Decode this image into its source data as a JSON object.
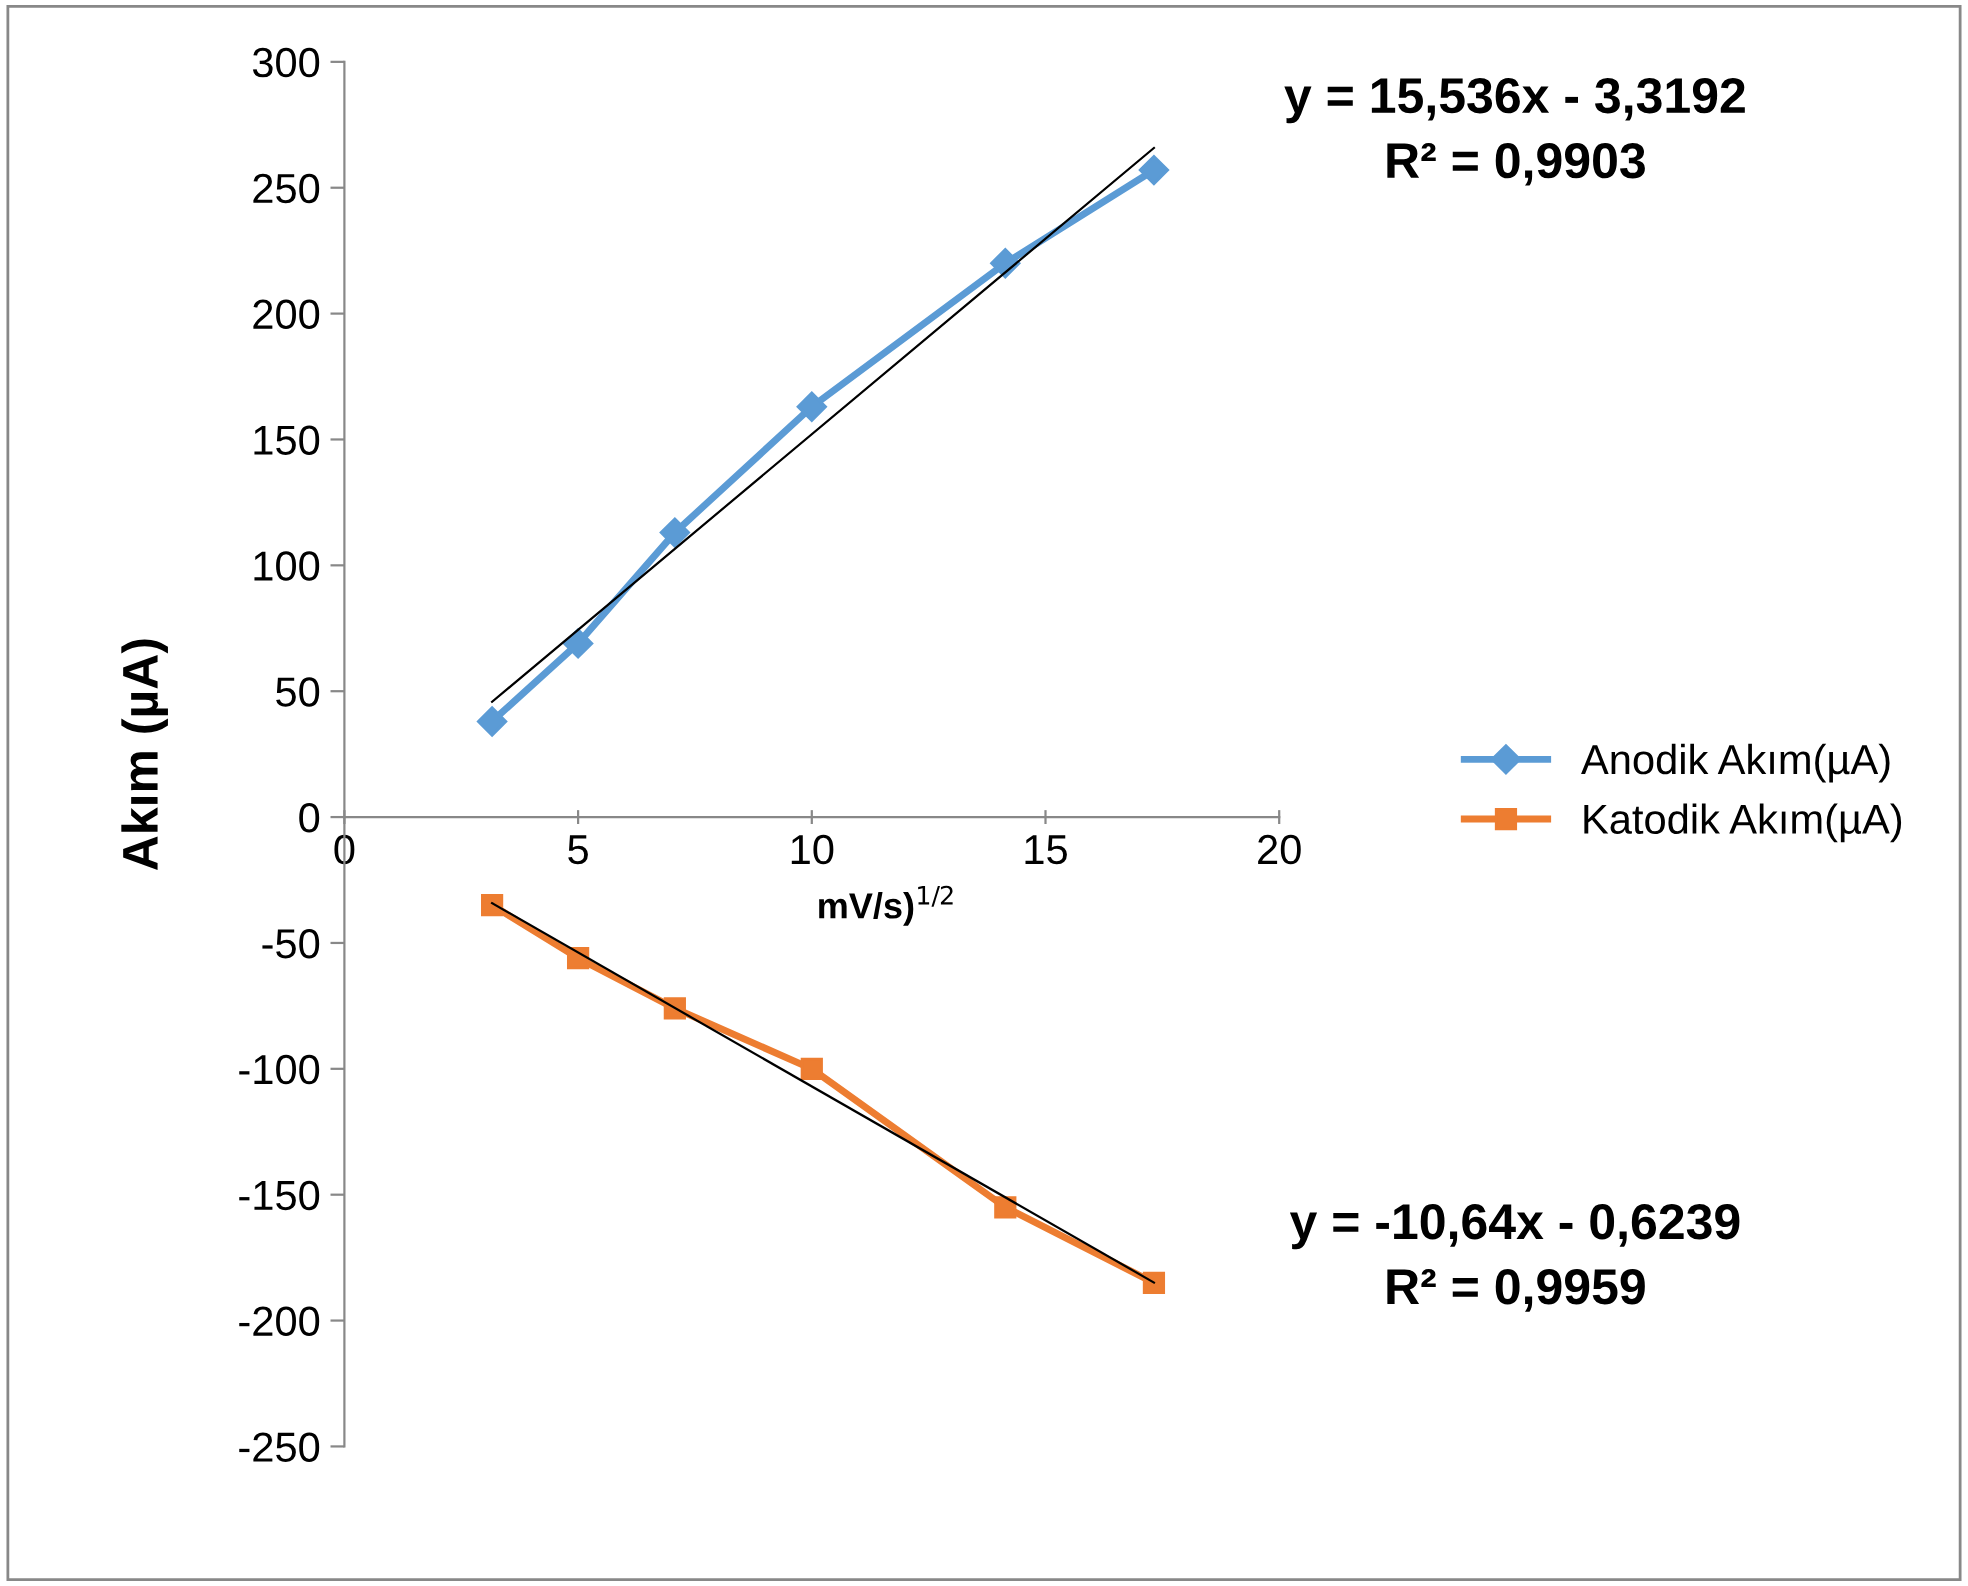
{
  "chart_data": {
    "type": "line",
    "xlabel": "mV/s)$^{1/2}$",
    "ylabel": "Akım (µA)",
    "xlim": [
      0,
      20
    ],
    "xticks": [
      0,
      5,
      10,
      15,
      20
    ],
    "ylim": [
      -250,
      300
    ],
    "yticks": [
      -250,
      -200,
      -150,
      -100,
      -50,
      0,
      50,
      100,
      150,
      200,
      250,
      300
    ],
    "grid": false,
    "legend": "right",
    "series": [
      {
        "name": "Anodik Akım(µA)",
        "color": "#5b9bd5",
        "marker": "diamond",
        "x": [
          3.16,
          5,
          7.07,
          10,
          14.14,
          17.32
        ],
        "values": [
          38,
          69,
          113,
          163,
          220,
          257
        ]
      },
      {
        "name": "Katodik Akım(µA)",
        "color": "#ed7d31",
        "marker": "square",
        "x": [
          3.16,
          5,
          7.07,
          10,
          14.14,
          17.32
        ],
        "values": [
          -35,
          -56,
          -76,
          -100,
          -155,
          -185
        ]
      },
      {
        "type": "line",
        "color": "#000000",
        "marker": "none",
        "x": [
          3.16,
          17.32
        ],
        "values": [
          45.8,
          265.8
        ]
      },
      {
        "type": "line",
        "color": "#000000",
        "marker": "none",
        "x": [
          3.16,
          17.32
        ],
        "values": [
          -34.2,
          -184.9
        ]
      }
    ],
    "annotations": [
      "y = 15,536x - 3,3192",
      "R² = 0,9903",
      "y = -10,64x - 0,6239",
      "R² = 0,9959"
    ]
  }
}
